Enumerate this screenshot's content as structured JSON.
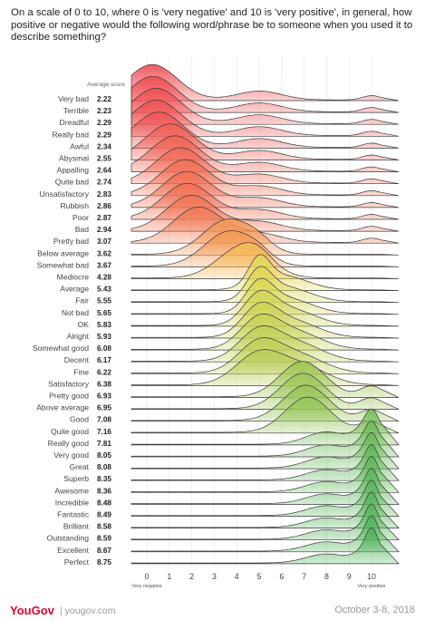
{
  "title": "On a scale of 0 to 10, where 0 is 'very negative' and 10 is 'very positive', in general, how positive or negative would the following word/phrase be to someone when you used it to describe something?",
  "chart_data": {
    "type": "ridgeline",
    "score_header": "Average score",
    "x_ticks": [
      "0",
      "1",
      "2",
      "3",
      "4",
      "5",
      "6",
      "7",
      "8",
      "9",
      "10"
    ],
    "xlim": [
      0,
      10
    ],
    "x_min_label": "Very negative",
    "x_max_label": "Very positive",
    "grid": "vertical",
    "colors": {
      "negative": "#ef4f56",
      "neutral": "#f7dd55",
      "positive": "#4fb35a"
    },
    "series": [
      {
        "name": "Very bad",
        "avg": 2.22
      },
      {
        "name": "Terrible",
        "avg": 2.23
      },
      {
        "name": "Dreadful",
        "avg": 2.29
      },
      {
        "name": "Really bad",
        "avg": 2.29
      },
      {
        "name": "Awful",
        "avg": 2.34
      },
      {
        "name": "Abysmal",
        "avg": 2.55
      },
      {
        "name": "Appalling",
        "avg": 2.64
      },
      {
        "name": "Quite bad",
        "avg": 2.74
      },
      {
        "name": "Unsatisfactory",
        "avg": 2.83
      },
      {
        "name": "Rubbish",
        "avg": 2.86
      },
      {
        "name": "Poor",
        "avg": 2.87
      },
      {
        "name": "Bad",
        "avg": 2.94
      },
      {
        "name": "Pretty bad",
        "avg": 3.07
      },
      {
        "name": "Below average",
        "avg": 3.62
      },
      {
        "name": "Somewhat bad",
        "avg": 3.67
      },
      {
        "name": "Mediocre",
        "avg": 4.28
      },
      {
        "name": "Average",
        "avg": 5.43
      },
      {
        "name": "Fair",
        "avg": 5.55
      },
      {
        "name": "Not bad",
        "avg": 5.65
      },
      {
        "name": "OK",
        "avg": 5.83
      },
      {
        "name": "Alright",
        "avg": 5.93
      },
      {
        "name": "Somewhat good",
        "avg": 6.08
      },
      {
        "name": "Decent",
        "avg": 6.17
      },
      {
        "name": "Fine",
        "avg": 6.22
      },
      {
        "name": "Satisfactory",
        "avg": 6.38
      },
      {
        "name": "Pretty good",
        "avg": 6.93
      },
      {
        "name": "Above average",
        "avg": 6.95
      },
      {
        "name": "Good",
        "avg": 7.08
      },
      {
        "name": "Quite good",
        "avg": 7.16
      },
      {
        "name": "Really good",
        "avg": 7.81
      },
      {
        "name": "Very good",
        "avg": 8.05
      },
      {
        "name": "Great",
        "avg": 8.08
      },
      {
        "name": "Superb",
        "avg": 8.35
      },
      {
        "name": "Awesome",
        "avg": 8.36
      },
      {
        "name": "Incredible",
        "avg": 8.48
      },
      {
        "name": "Fantastic",
        "avg": 8.49
      },
      {
        "name": "Brilliant",
        "avg": 8.58
      },
      {
        "name": "Outstanding",
        "avg": 8.59
      },
      {
        "name": "Excellent",
        "avg": 8.67
      },
      {
        "name": "Perfect",
        "avg": 8.75
      }
    ]
  },
  "footer": {
    "brand": "YouGov",
    "url": "| yougov.com",
    "date": "October 3-8, 2018"
  }
}
